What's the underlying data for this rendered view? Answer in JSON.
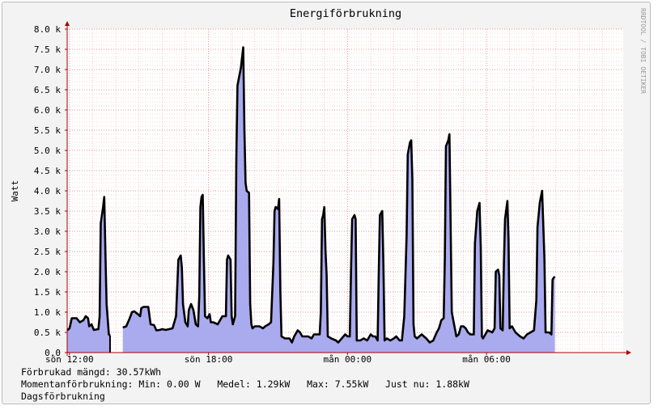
{
  "chart_data": {
    "type": "area",
    "title": "Energiförbrukning",
    "ylabel": "Watt",
    "watermark": "RRDTOOL / TOBI OETIKER",
    "ylim": [
      0,
      8000
    ],
    "y_ticks": [
      {
        "value": 0,
        "label": "0.0"
      },
      {
        "value": 500,
        "label": "0.5 k"
      },
      {
        "value": 1000,
        "label": "1.0 k"
      },
      {
        "value": 1500,
        "label": "1.5 k"
      },
      {
        "value": 2000,
        "label": "2.0 k"
      },
      {
        "value": 2500,
        "label": "2.5 k"
      },
      {
        "value": 3000,
        "label": "3.0 k"
      },
      {
        "value": 3500,
        "label": "3.5 k"
      },
      {
        "value": 4000,
        "label": "4.0 k"
      },
      {
        "value": 4500,
        "label": "4.5 k"
      },
      {
        "value": 5000,
        "label": "5.0 k"
      },
      {
        "value": 5500,
        "label": "5.5 k"
      },
      {
        "value": 6000,
        "label": "6.0 k"
      },
      {
        "value": 6500,
        "label": "6.5 k"
      },
      {
        "value": 7000,
        "label": "7.0 k"
      },
      {
        "value": 7500,
        "label": "7.5 k"
      },
      {
        "value": 8000,
        "label": "8.0 k"
      }
    ],
    "x_ticks": [
      {
        "hour": 12,
        "label": "sön 12:00"
      },
      {
        "hour": 18,
        "label": "sön 18:00"
      },
      {
        "hour": 24,
        "label": "mån 00:00"
      },
      {
        "hour": 30,
        "label": "mån 06:00"
      }
    ],
    "xlim_hours": [
      11.9,
      35.9
    ],
    "grid": true,
    "colors": {
      "area": "#aaaaee",
      "line": "#000000",
      "grid_major": "#e07070",
      "grid_minor": "#eaaaaa",
      "axis": "#aa0000",
      "plot_bg": "#ffffff",
      "frame_bg": "#f3f3f3"
    },
    "series": [
      {
        "name": "Momentanförbrukning",
        "unit": "W",
        "points": [
          [
            11.9,
            550
          ],
          [
            12.0,
            600
          ],
          [
            12.1,
            850
          ],
          [
            12.3,
            850
          ],
          [
            12.45,
            750
          ],
          [
            12.6,
            800
          ],
          [
            12.7,
            900
          ],
          [
            12.8,
            850
          ],
          [
            12.85,
            650
          ],
          [
            12.95,
            700
          ],
          [
            13.05,
            560
          ],
          [
            13.25,
            580
          ],
          [
            13.3,
            900
          ],
          [
            13.35,
            3200
          ],
          [
            13.45,
            3600
          ],
          [
            13.5,
            3850
          ],
          [
            13.55,
            2500
          ],
          [
            13.6,
            1200
          ],
          [
            13.7,
            450
          ],
          [
            13.75,
            420
          ],
          [
            13.9,
            null
          ],
          [
            14.05,
            null
          ],
          [
            14.3,
            620
          ],
          [
            14.45,
            650
          ],
          [
            14.6,
            850
          ],
          [
            14.7,
            1000
          ],
          [
            14.8,
            1020
          ],
          [
            14.95,
            950
          ],
          [
            15.05,
            900
          ],
          [
            15.1,
            1100
          ],
          [
            15.2,
            1130
          ],
          [
            15.4,
            1130
          ],
          [
            15.5,
            700
          ],
          [
            15.65,
            680
          ],
          [
            15.75,
            550
          ],
          [
            15.9,
            560
          ],
          [
            16.0,
            580
          ],
          [
            16.15,
            560
          ],
          [
            16.3,
            580
          ],
          [
            16.45,
            600
          ],
          [
            16.55,
            800
          ],
          [
            16.6,
            900
          ],
          [
            16.7,
            2300
          ],
          [
            16.8,
            2400
          ],
          [
            16.85,
            2100
          ],
          [
            16.9,
            1200
          ],
          [
            17.0,
            750
          ],
          [
            17.1,
            650
          ],
          [
            17.15,
            1050
          ],
          [
            17.25,
            1200
          ],
          [
            17.35,
            1050
          ],
          [
            17.45,
            700
          ],
          [
            17.55,
            650
          ],
          [
            17.6,
            1400
          ],
          [
            17.65,
            3600
          ],
          [
            17.7,
            3850
          ],
          [
            17.75,
            3900
          ],
          [
            17.8,
            2300
          ],
          [
            17.85,
            900
          ],
          [
            17.95,
            850
          ],
          [
            18.05,
            950
          ],
          [
            18.1,
            750
          ],
          [
            18.2,
            750
          ],
          [
            18.4,
            700
          ],
          [
            18.5,
            800
          ],
          [
            18.6,
            900
          ],
          [
            18.75,
            900
          ],
          [
            18.8,
            2300
          ],
          [
            18.85,
            2400
          ],
          [
            18.95,
            2300
          ],
          [
            19.0,
            900
          ],
          [
            19.05,
            700
          ],
          [
            19.15,
            900
          ],
          [
            19.2,
            4800
          ],
          [
            19.25,
            6600
          ],
          [
            19.3,
            6750
          ],
          [
            19.4,
            7050
          ],
          [
            19.5,
            7550
          ],
          [
            19.55,
            5500
          ],
          [
            19.6,
            4200
          ],
          [
            19.65,
            4000
          ],
          [
            19.75,
            3950
          ],
          [
            19.8,
            1200
          ],
          [
            19.85,
            700
          ],
          [
            19.9,
            600
          ],
          [
            20.0,
            650
          ],
          [
            20.2,
            650
          ],
          [
            20.35,
            600
          ],
          [
            20.45,
            650
          ],
          [
            20.6,
            700
          ],
          [
            20.7,
            750
          ],
          [
            20.8,
            2200
          ],
          [
            20.85,
            3500
          ],
          [
            20.9,
            3600
          ],
          [
            21.0,
            3550
          ],
          [
            21.05,
            3800
          ],
          [
            21.1,
            1500
          ],
          [
            21.15,
            400
          ],
          [
            21.3,
            350
          ],
          [
            21.5,
            350
          ],
          [
            21.6,
            250
          ],
          [
            21.7,
            400
          ],
          [
            21.85,
            550
          ],
          [
            21.95,
            500
          ],
          [
            22.05,
            400
          ],
          [
            22.3,
            400
          ],
          [
            22.45,
            350
          ],
          [
            22.55,
            450
          ],
          [
            22.7,
            450
          ],
          [
            22.8,
            450
          ],
          [
            22.85,
            1000
          ],
          [
            22.9,
            3300
          ],
          [
            22.95,
            3400
          ],
          [
            23.0,
            3600
          ],
          [
            23.05,
            2500
          ],
          [
            23.1,
            1900
          ],
          [
            23.15,
            400
          ],
          [
            23.3,
            350
          ],
          [
            23.5,
            300
          ],
          [
            23.6,
            250
          ],
          [
            23.75,
            350
          ],
          [
            23.9,
            450
          ],
          [
            24.0,
            400
          ],
          [
            24.1,
            400
          ],
          [
            24.15,
            2000
          ],
          [
            24.2,
            3300
          ],
          [
            24.3,
            3400
          ],
          [
            24.35,
            3300
          ],
          [
            24.4,
            300
          ],
          [
            24.55,
            300
          ],
          [
            24.7,
            350
          ],
          [
            24.85,
            300
          ],
          [
            25.0,
            450
          ],
          [
            25.1,
            400
          ],
          [
            25.2,
            400
          ],
          [
            25.3,
            300
          ],
          [
            25.35,
            2000
          ],
          [
            25.4,
            3400
          ],
          [
            25.5,
            3500
          ],
          [
            25.55,
            2200
          ],
          [
            25.6,
            300
          ],
          [
            25.7,
            350
          ],
          [
            25.85,
            300
          ],
          [
            26.0,
            350
          ],
          [
            26.1,
            400
          ],
          [
            26.25,
            300
          ],
          [
            26.35,
            300
          ],
          [
            26.45,
            900
          ],
          [
            26.55,
            2900
          ],
          [
            26.6,
            4900
          ],
          [
            26.7,
            5200
          ],
          [
            26.75,
            5250
          ],
          [
            26.8,
            4300
          ],
          [
            26.85,
            700
          ],
          [
            26.9,
            400
          ],
          [
            27.0,
            350
          ],
          [
            27.2,
            450
          ],
          [
            27.3,
            400
          ],
          [
            27.4,
            350
          ],
          [
            27.55,
            250
          ],
          [
            27.7,
            300
          ],
          [
            27.85,
            500
          ],
          [
            27.95,
            600
          ],
          [
            28.05,
            800
          ],
          [
            28.15,
            850
          ],
          [
            28.2,
            2300
          ],
          [
            28.25,
            5100
          ],
          [
            28.35,
            5250
          ],
          [
            28.4,
            5400
          ],
          [
            28.45,
            3300
          ],
          [
            28.5,
            1000
          ],
          [
            28.6,
            700
          ],
          [
            28.7,
            400
          ],
          [
            28.8,
            450
          ],
          [
            28.9,
            650
          ],
          [
            29.0,
            650
          ],
          [
            29.1,
            600
          ],
          [
            29.2,
            500
          ],
          [
            29.3,
            450
          ],
          [
            29.45,
            450
          ],
          [
            29.5,
            2700
          ],
          [
            29.6,
            3500
          ],
          [
            29.7,
            3700
          ],
          [
            29.75,
            2600
          ],
          [
            29.8,
            400
          ],
          [
            29.85,
            350
          ],
          [
            29.95,
            450
          ],
          [
            30.05,
            550
          ],
          [
            30.25,
            500
          ],
          [
            30.35,
            600
          ],
          [
            30.4,
            2000
          ],
          [
            30.5,
            2050
          ],
          [
            30.55,
            1900
          ],
          [
            30.6,
            600
          ],
          [
            30.7,
            550
          ],
          [
            30.75,
            2200
          ],
          [
            30.8,
            3300
          ],
          [
            30.9,
            3750
          ],
          [
            30.95,
            2800
          ],
          [
            31.0,
            600
          ],
          [
            31.1,
            650
          ],
          [
            31.25,
            500
          ],
          [
            31.45,
            400
          ],
          [
            31.6,
            350
          ],
          [
            31.75,
            450
          ],
          [
            31.9,
            500
          ],
          [
            32.05,
            550
          ],
          [
            32.15,
            1300
          ],
          [
            32.2,
            3100
          ],
          [
            32.3,
            3700
          ],
          [
            32.4,
            4000
          ],
          [
            32.45,
            3200
          ],
          [
            32.5,
            2300
          ],
          [
            32.55,
            500
          ],
          [
            32.7,
            500
          ],
          [
            32.8,
            450
          ],
          [
            32.85,
            1800
          ],
          [
            32.9,
            1850
          ],
          [
            32.95,
            1880
          ]
        ]
      }
    ]
  },
  "footer": {
    "line1": "Förbrukad mängd: 30.57kWh",
    "line2": "Momentanförbrukning: Min: 0.00 W   Medel: 1.29kW   Max: 7.55kW   Just nu: 1.88kW",
    "line3": "Dagsförbrukning"
  }
}
